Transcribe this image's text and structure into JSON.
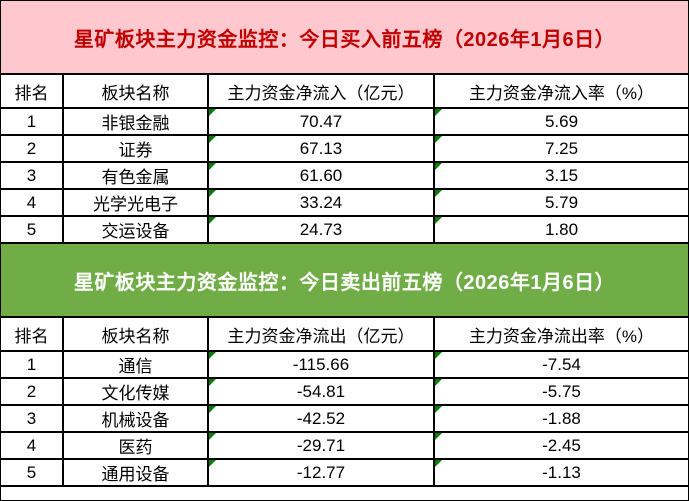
{
  "colors": {
    "buy_banner_bg": "#FFC7CE",
    "buy_banner_text": "#C00000",
    "sell_banner_bg": "#70AD47",
    "sell_banner_text": "#FFFFFF",
    "grid_line": "#000000",
    "triangle": "#008000",
    "cell_bg": "#FFFFFF",
    "cell_text": "#000000"
  },
  "chart_data": [
    {
      "type": "table",
      "title": "星矿板块主力资金监控：今日买入前五榜（2026年1月6日）",
      "columns": [
        "排名",
        "板块名称",
        "主力资金净流入（亿元）",
        "主力资金净流入率（%）"
      ],
      "rows": [
        [
          "1",
          "非银金融",
          "70.47",
          "5.69"
        ],
        [
          "2",
          "证券",
          "67.13",
          "7.25"
        ],
        [
          "3",
          "有色金属",
          "61.60",
          "3.15"
        ],
        [
          "4",
          "光学光电子",
          "33.24",
          "5.79"
        ],
        [
          "5",
          "交运设备",
          "24.73",
          "1.80"
        ]
      ]
    },
    {
      "type": "table",
      "title": "星矿板块主力资金监控：今日卖出前五榜（2026年1月6日）",
      "columns": [
        "排名",
        "板块名称",
        "主力资金净流出（亿元）",
        "主力资金净流出率（%）"
      ],
      "rows": [
        [
          "1",
          "通信",
          "-115.66",
          "-7.54"
        ],
        [
          "2",
          "文化传媒",
          "-54.81",
          "-5.75"
        ],
        [
          "3",
          "机械设备",
          "-42.52",
          "-1.88"
        ],
        [
          "4",
          "医药",
          "-29.71",
          "-2.45"
        ],
        [
          "5",
          "通用设备",
          "-12.77",
          "-1.13"
        ]
      ]
    }
  ]
}
